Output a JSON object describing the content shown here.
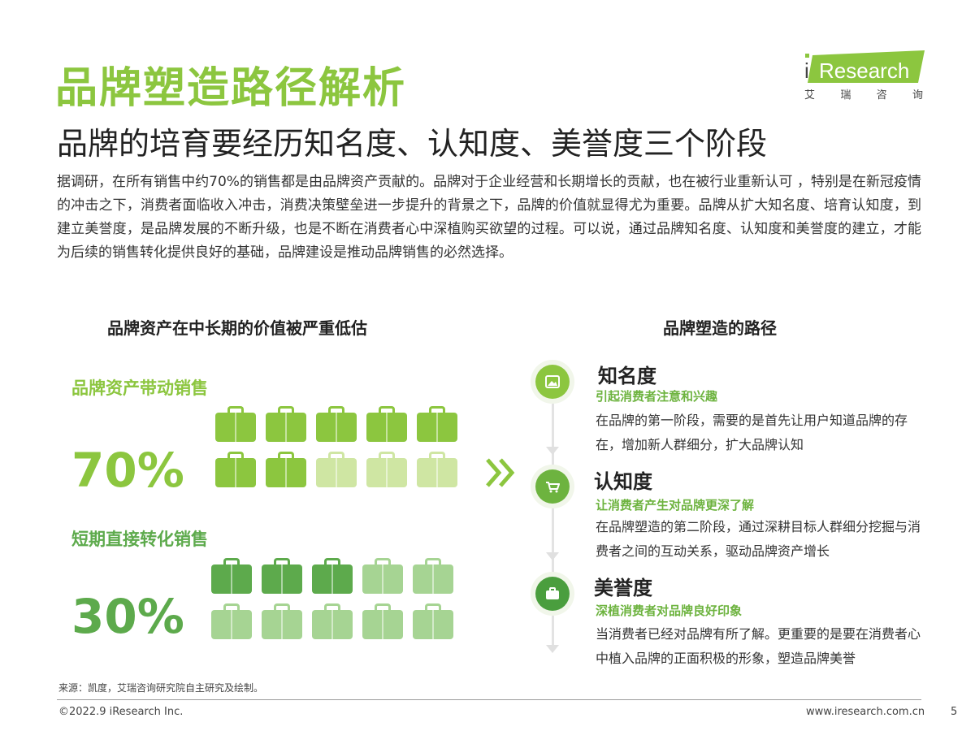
{
  "title": "品牌塑造路径解析",
  "subtitle": "品牌的培育要经历知名度、认知度、美誉度三个阶段",
  "logo": {
    "word_i": "i",
    "word_rest": "Research",
    "sub_chars": [
      "艾",
      "瑞",
      "咨",
      "询"
    ],
    "accent_color": "#8cc63f"
  },
  "intro": "据调研，在所有销售中约70%的销售都是由品牌资产贡献的。品牌对于企业经营和长期增长的贡献，也在被行业重新认可 ，特别是在新冠疫情的冲击之下，消费者面临收入冲击，消费决策壁垒进一步提升的背景之下，品牌的价值就显得尤为重要。品牌从扩大知名度、培育认知度，到建立美誉度，是品牌发展的不断升级，也是不断在消费者心中深植购买欲望的过程。可以说，通过品牌知名度、认知度和美誉度的建立，才能为后续的销售转化提供良好的基础，品牌建设是推动品牌销售的必然选择。",
  "left": {
    "heading": "品牌资产在中长期的价值被严重低估",
    "groups": [
      {
        "label": "品牌资产带动销售",
        "percent": "70%",
        "filled": 7,
        "total": 10,
        "color_filled": "#8cc63f",
        "color_empty": "#cfe6a3"
      },
      {
        "label": "短期直接转化销售",
        "percent": "30%",
        "filled": 3,
        "total": 10,
        "color_filled": "#5daa4c",
        "color_empty": "#a6d493"
      }
    ]
  },
  "right": {
    "heading": "品牌塑造的路径",
    "stages": [
      {
        "title": "知名度",
        "tag": "引起消费者注意和兴趣",
        "desc": "在品牌的第一阶段，需要的是首先让用户知道品牌的存在，增加新人群细分，扩大品牌认知",
        "icon": "image-icon",
        "color": "#8cc63f"
      },
      {
        "title": "认知度",
        "tag": "让消费者产生对品牌更深了解",
        "desc": "在品牌塑造的第二阶段，通过深耕目标人群细分挖掘与消费者之间的互动关系，驱动品牌资产增长",
        "icon": "cart-icon",
        "color": "#6db33f"
      },
      {
        "title": "美誉度",
        "tag": "深植消费者对品牌良好印象",
        "desc": "当消费者已经对品牌有所了解。更重要的是要在消费者心中植入品牌的正面积极的形象，塑造品牌美誉",
        "icon": "briefcase-icon",
        "color": "#4a9e3e"
      }
    ]
  },
  "footer": {
    "source": "来源：凯度，艾瑞咨询研究院自主研究及绘制。",
    "copyright": "©2022.9 iResearch Inc.",
    "website": "www.iresearch.com.cn",
    "page": "5"
  }
}
